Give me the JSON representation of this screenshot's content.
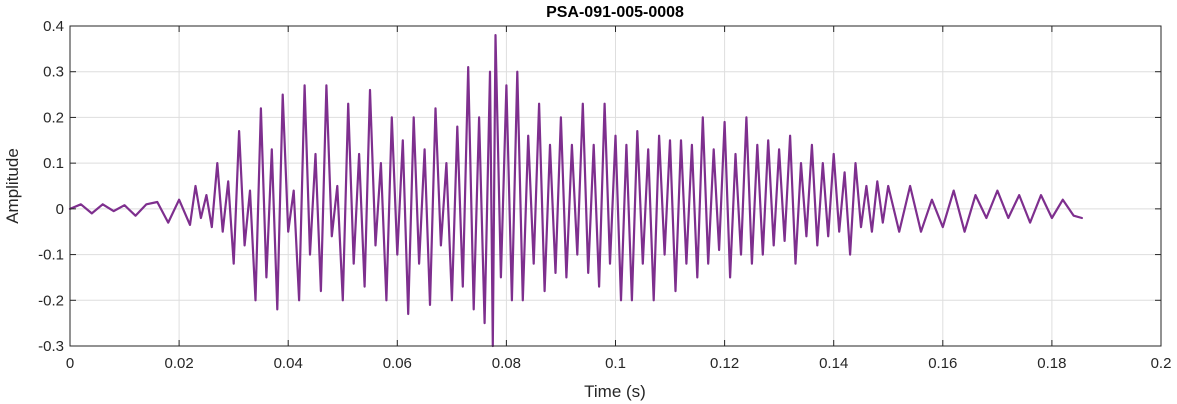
{
  "chart_data": {
    "type": "line",
    "title": "PSA-091-005-0008",
    "xlabel": "Time (s)",
    "ylabel": "Amplitude",
    "xlim": [
      0,
      0.2
    ],
    "ylim": [
      -0.3,
      0.4
    ],
    "xticks": [
      0,
      0.02,
      0.04,
      0.06,
      0.08,
      0.1,
      0.12,
      0.14,
      0.16,
      0.18,
      0.2
    ],
    "xtick_labels": [
      "0",
      "0.02",
      "0.04",
      "0.06",
      "0.08",
      "0.1",
      "0.12",
      "0.14",
      "0.16",
      "0.18",
      "0.2"
    ],
    "yticks": [
      -0.3,
      -0.2,
      -0.1,
      0,
      0.1,
      0.2,
      0.3,
      0.4
    ],
    "ytick_labels": [
      "-0.3",
      "-0.2",
      "-0.1",
      "0",
      "0.1",
      "0.2",
      "0.3",
      "0.4"
    ],
    "grid": true,
    "series": [
      {
        "color": "#7E2F8E",
        "x": [
          0,
          0.002,
          0.004,
          0.006,
          0.008,
          0.01,
          0.012,
          0.014,
          0.016,
          0.018,
          0.02,
          0.022,
          0.023,
          0.024,
          0.025,
          0.026,
          0.027,
          0.028,
          0.029,
          0.03,
          0.031,
          0.032,
          0.033,
          0.034,
          0.035,
          0.036,
          0.037,
          0.038,
          0.039,
          0.04,
          0.041,
          0.042,
          0.043,
          0.044,
          0.045,
          0.046,
          0.047,
          0.048,
          0.049,
          0.05,
          0.051,
          0.052,
          0.053,
          0.054,
          0.055,
          0.056,
          0.057,
          0.058,
          0.059,
          0.06,
          0.061,
          0.062,
          0.063,
          0.064,
          0.065,
          0.066,
          0.067,
          0.068,
          0.069,
          0.07,
          0.071,
          0.072,
          0.073,
          0.074,
          0.075,
          0.076,
          0.077,
          0.0775,
          0.078,
          0.079,
          0.08,
          0.081,
          0.082,
          0.083,
          0.084,
          0.085,
          0.086,
          0.087,
          0.088,
          0.089,
          0.09,
          0.091,
          0.092,
          0.093,
          0.094,
          0.095,
          0.096,
          0.097,
          0.098,
          0.099,
          0.1,
          0.101,
          0.102,
          0.103,
          0.104,
          0.105,
          0.106,
          0.107,
          0.108,
          0.109,
          0.11,
          0.111,
          0.112,
          0.113,
          0.114,
          0.115,
          0.116,
          0.117,
          0.118,
          0.119,
          0.12,
          0.121,
          0.122,
          0.123,
          0.124,
          0.125,
          0.126,
          0.127,
          0.128,
          0.129,
          0.13,
          0.131,
          0.132,
          0.133,
          0.134,
          0.135,
          0.136,
          0.137,
          0.138,
          0.139,
          0.14,
          0.141,
          0.142,
          0.143,
          0.144,
          0.145,
          0.146,
          0.147,
          0.148,
          0.149,
          0.15,
          0.152,
          0.154,
          0.156,
          0.158,
          0.16,
          0.162,
          0.164,
          0.166,
          0.168,
          0.17,
          0.172,
          0.174,
          0.176,
          0.178,
          0.18,
          0.182,
          0.184,
          0.1855
        ],
        "y": [
          0,
          0.01,
          -0.01,
          0.01,
          -0.005,
          0.008,
          -0.015,
          0.01,
          0.015,
          -0.03,
          0.02,
          -0.035,
          0.05,
          -0.02,
          0.03,
          -0.04,
          0.1,
          -0.05,
          0.06,
          -0.12,
          0.17,
          -0.08,
          0.04,
          -0.2,
          0.22,
          -0.15,
          0.13,
          -0.22,
          0.25,
          -0.05,
          0.04,
          -0.2,
          0.27,
          -0.1,
          0.12,
          -0.18,
          0.27,
          -0.06,
          0.05,
          -0.2,
          0.23,
          -0.12,
          0.12,
          -0.17,
          0.26,
          -0.08,
          0.1,
          -0.2,
          0.2,
          -0.1,
          0.15,
          -0.23,
          0.2,
          -0.12,
          0.13,
          -0.21,
          0.22,
          -0.08,
          0.1,
          -0.2,
          0.18,
          -0.17,
          0.31,
          -0.22,
          0.2,
          -0.25,
          0.3,
          -0.3,
          0.38,
          -0.15,
          0.27,
          -0.2,
          0.3,
          -0.2,
          0.16,
          -0.12,
          0.23,
          -0.18,
          0.14,
          -0.14,
          0.2,
          -0.15,
          0.14,
          -0.1,
          0.23,
          -0.14,
          0.14,
          -0.17,
          0.23,
          -0.12,
          0.16,
          -0.2,
          0.14,
          -0.2,
          0.17,
          -0.12,
          0.13,
          -0.2,
          0.16,
          -0.1,
          0.15,
          -0.18,
          0.15,
          -0.12,
          0.14,
          -0.15,
          0.2,
          -0.12,
          0.13,
          -0.09,
          0.19,
          -0.15,
          0.12,
          -0.1,
          0.2,
          -0.12,
          0.14,
          -0.1,
          0.15,
          -0.08,
          0.13,
          -0.07,
          0.16,
          -0.12,
          0.1,
          -0.06,
          0.14,
          -0.08,
          0.1,
          -0.06,
          0.12,
          -0.05,
          0.08,
          -0.1,
          0.1,
          -0.04,
          0.05,
          -0.05,
          0.06,
          -0.03,
          0.05,
          -0.05,
          0.05,
          -0.05,
          0.02,
          -0.04,
          0.04,
          -0.05,
          0.03,
          -0.02,
          0.04,
          -0.02,
          0.03,
          -0.03,
          0.03,
          -0.02,
          0.02,
          -0.015,
          -0.02
        ]
      }
    ]
  }
}
